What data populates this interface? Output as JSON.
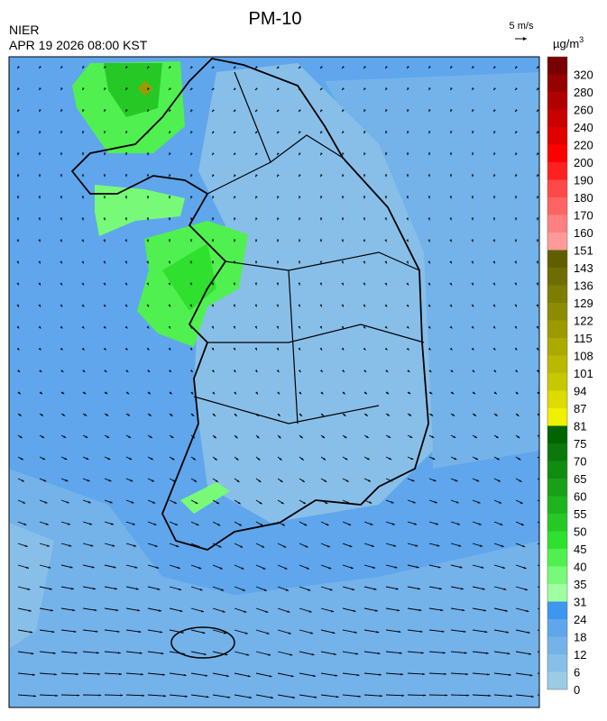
{
  "title": "PM-10",
  "source": "NIER",
  "timestamp": "APR 19 2026 08:00 KST",
  "wind_scale": "5 m/s",
  "unit": "µg/m",
  "unit_sup": "3",
  "colorbar": {
    "levels": [
      0,
      6,
      12,
      18,
      24,
      31,
      35,
      40,
      45,
      50,
      55,
      60,
      65,
      70,
      75,
      81,
      87,
      94,
      101,
      108,
      115,
      122,
      129,
      136,
      143,
      151,
      160,
      170,
      180,
      190,
      200,
      220,
      240,
      260,
      280,
      320
    ],
    "colors": [
      "#9ccbe6",
      "#88bfe8",
      "#74b2ea",
      "#5fa6ec",
      "#3d96f0",
      "#a0ffa0",
      "#78fa78",
      "#50f050",
      "#2fe02f",
      "#26c826",
      "#1eb41e",
      "#18a018",
      "#108c10",
      "#0a780a",
      "#006400",
      "#f0f000",
      "#dcdc00",
      "#c8c800",
      "#b9b900",
      "#aaaa00",
      "#9b9b00",
      "#8c8c00",
      "#7d7d00",
      "#6e6e00",
      "#5f5f00",
      "#ff9a9a",
      "#ff8080",
      "#ff6464",
      "#ff4848",
      "#ff2020",
      "#ff0000",
      "#e00000",
      "#c80000",
      "#b00000",
      "#960000",
      "#780000"
    ]
  }
}
